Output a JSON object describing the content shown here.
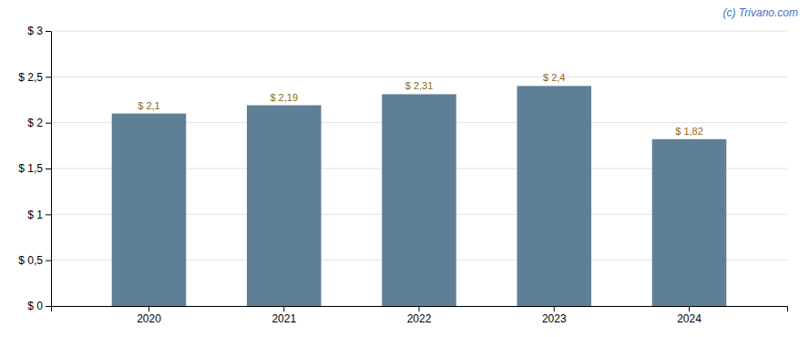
{
  "chart_data": {
    "type": "bar",
    "categories": [
      "2020",
      "2021",
      "2022",
      "2023",
      "2024"
    ],
    "values": [
      2.1,
      2.19,
      2.31,
      2.4,
      1.82
    ],
    "value_labels": [
      "$ 2,1",
      "$ 2,19",
      "$ 2,31",
      "$ 2,4",
      "$ 1,82"
    ],
    "data_labels": true,
    "color": "#5f7f96",
    "ylim": [
      0,
      3.0
    ],
    "yticks": [
      {
        "value": 0,
        "label": "$ 0"
      },
      {
        "value": 0.5,
        "label": "$ 0,5"
      },
      {
        "value": 1.0,
        "label": "$ 1"
      },
      {
        "value": 1.5,
        "label": "$ 1,5"
      },
      {
        "value": 2.0,
        "label": "$ 2"
      },
      {
        "value": 2.5,
        "label": "$ 2,5"
      },
      {
        "value": 3.0,
        "label": "$ 3"
      }
    ],
    "grid": true,
    "annotations": [
      "(c) Trivano.com"
    ]
  }
}
